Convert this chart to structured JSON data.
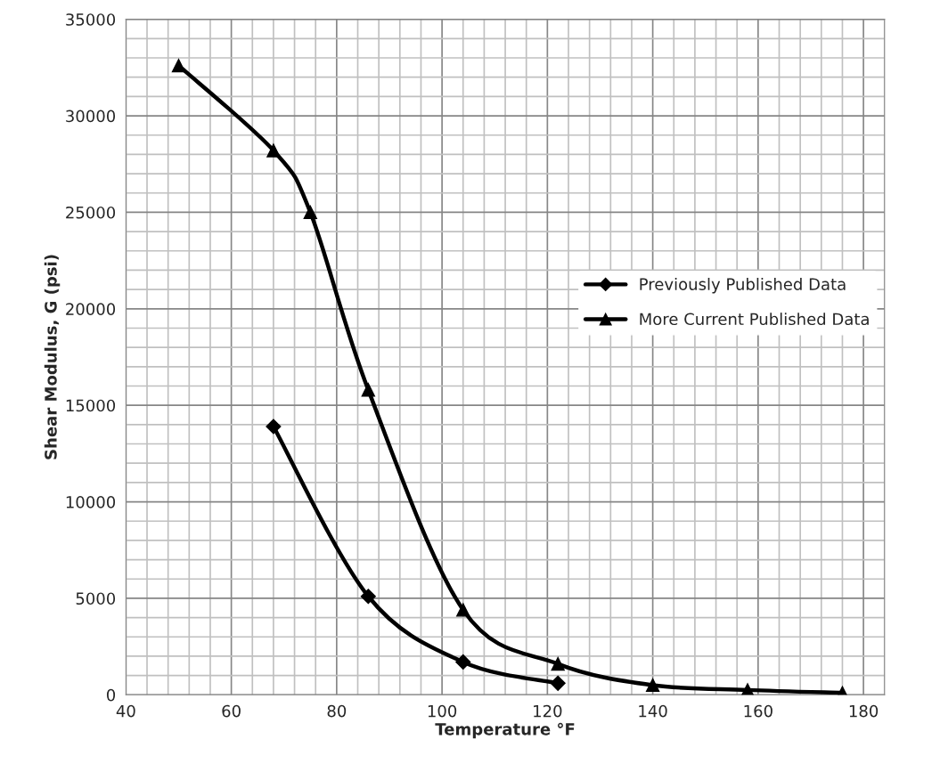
{
  "chart_data": {
    "type": "line",
    "xlabel": "Temperature °F",
    "ylabel": "Shear Modulus, G (psi)",
    "xlim": [
      40,
      184
    ],
    "ylim": [
      0,
      35000
    ],
    "xticks": [
      40,
      {
        "value": 44,
        "label": null
      },
      {
        "value": 48,
        "label": null
      },
      {
        "value": 52,
        "label": null
      },
      {
        "value": 56,
        "label": null
      },
      60,
      {
        "value": 64,
        "label": null
      },
      {
        "value": 68,
        "label": null
      },
      {
        "value": 72,
        "label": null
      },
      {
        "value": 76,
        "label": null
      },
      80,
      {
        "value": 84,
        "label": null
      },
      {
        "value": 88,
        "label": null
      },
      {
        "value": 92,
        "label": null
      },
      {
        "value": 96,
        "label": null
      },
      100,
      {
        "value": 104,
        "label": null
      },
      {
        "value": 108,
        "label": null
      },
      {
        "value": 112,
        "label": null
      },
      {
        "value": 116,
        "label": null
      },
      120,
      {
        "value": 124,
        "label": null
      },
      {
        "value": 128,
        "label": null
      },
      {
        "value": 132,
        "label": null
      },
      {
        "value": 136,
        "label": null
      },
      140,
      {
        "value": 144,
        "label": null
      },
      {
        "value": 148,
        "label": null
      },
      {
        "value": 152,
        "label": null
      },
      {
        "value": 156,
        "label": null
      },
      160,
      {
        "value": 164,
        "label": null
      },
      {
        "value": 168,
        "label": null
      },
      {
        "value": 172,
        "label": null
      },
      {
        "value": 176,
        "label": null
      },
      180,
      {
        "value": 184,
        "label": null
      }
    ],
    "yticks": [
      0,
      {
        "value": 1000,
        "label": null
      },
      {
        "value": 2000,
        "label": null
      },
      {
        "value": 3000,
        "label": null
      },
      {
        "value": 4000,
        "label": null
      },
      5000,
      {
        "value": 6000,
        "label": null
      },
      {
        "value": 7000,
        "label": null
      },
      {
        "value": 8000,
        "label": null
      },
      {
        "value": 9000,
        "label": null
      },
      10000,
      {
        "value": 11000,
        "label": null
      },
      {
        "value": 12000,
        "label": null
      },
      {
        "value": 13000,
        "label": null
      },
      {
        "value": 14000,
        "label": null
      },
      15000,
      {
        "value": 16000,
        "label": null
      },
      {
        "value": 17000,
        "label": null
      },
      {
        "value": 18000,
        "label": null
      },
      {
        "value": 19000,
        "label": null
      },
      20000,
      {
        "value": 21000,
        "label": null
      },
      {
        "value": 22000,
        "label": null
      },
      {
        "value": 23000,
        "label": null
      },
      {
        "value": 24000,
        "label": null
      },
      25000,
      {
        "value": 26000,
        "label": null
      },
      {
        "value": 27000,
        "label": null
      },
      {
        "value": 28000,
        "label": null
      },
      {
        "value": 29000,
        "label": null
      },
      30000,
      {
        "value": 31000,
        "label": null
      },
      {
        "value": 32000,
        "label": null
      },
      {
        "value": 33000,
        "label": null
      },
      {
        "value": 34000,
        "label": null
      },
      35000
    ],
    "grid": true,
    "legend": "right",
    "line_style": "solid",
    "series": [
      {
        "name": "Previously Published Data",
        "color": "#000000",
        "marker": "diamond",
        "x": [
          68,
          86,
          104,
          122
        ],
        "values": [
          13900,
          5100,
          1700,
          600
        ]
      },
      {
        "name": "More Current Published Data",
        "color": "#000000",
        "marker": "triangle",
        "x": [
          50,
          68,
          75,
          86,
          104,
          122,
          140,
          158,
          176
        ],
        "values": [
          32600,
          28200,
          25000,
          15800,
          4400,
          1600,
          500,
          250,
          100
        ]
      }
    ]
  }
}
